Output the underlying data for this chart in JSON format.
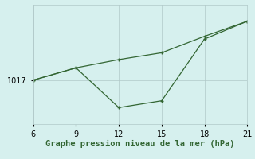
{
  "x": [
    6,
    9,
    12,
    15,
    18,
    21
  ],
  "line1": [
    1017.0,
    1017.9,
    1018.5,
    1019.0,
    1020.2,
    1021.3
  ],
  "line2": [
    1017.0,
    1017.9,
    1015.0,
    1015.5,
    1020.0,
    1021.3
  ],
  "line_color": "#336633",
  "bg_color": "#d6f0ee",
  "grid_color": "#b0c8c8",
  "xlabel": "Graphe pression niveau de la mer (hPa)",
  "ytick_labels": [
    "1017"
  ],
  "ytick_values": [
    1017.0
  ],
  "xlim": [
    6,
    21
  ],
  "ylim": [
    1013.8,
    1022.5
  ],
  "xticks": [
    6,
    9,
    12,
    15,
    18,
    21
  ],
  "xlabel_fontsize": 7.5,
  "tick_fontsize": 7.0
}
